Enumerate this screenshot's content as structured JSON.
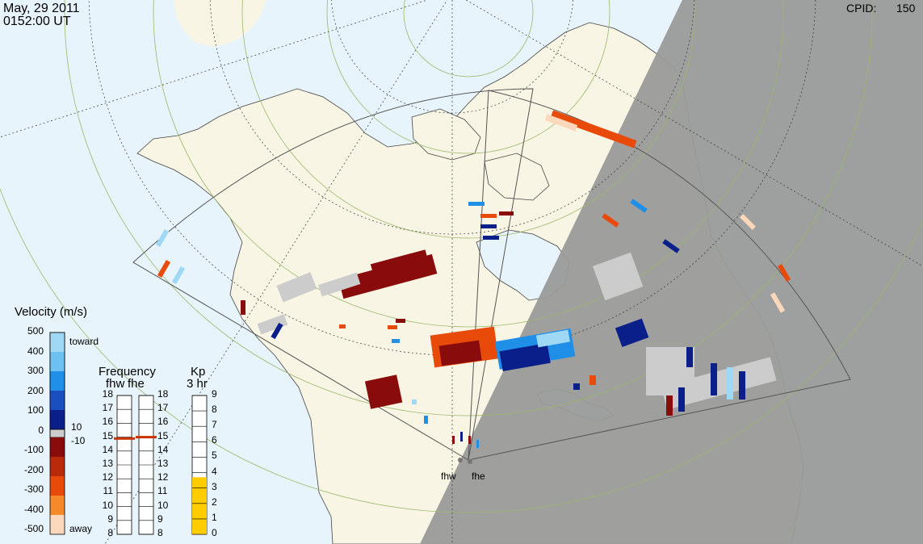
{
  "header": {
    "date": "May, 29 2011",
    "time": "0152:00 UT",
    "cpid_label": "CPID:",
    "cpid_value": "150"
  },
  "radars": [
    "fhw",
    "fhe"
  ],
  "velocity_scale": {
    "title": "Velocity (m/s)",
    "ticks": [
      "500",
      "400",
      "300",
      "200",
      "100",
      "0",
      "-100",
      "-200",
      "-300",
      "-400",
      "-500"
    ],
    "toward_label": "toward",
    "away_label": "away",
    "threshold_pos": "10",
    "threshold_neg": "-10",
    "colors": {
      "toward_max": "#9fd8f5",
      "toward_mid": "#1f8fe8",
      "toward_min": "#0a1f8a",
      "zero": "#cccccc",
      "away_min": "#8a0b0b",
      "away_mid": "#e84a0a",
      "away_max": "#fbd7bb"
    }
  },
  "frequency_panel": {
    "title": "Frequency",
    "subtitle_left": "fhw",
    "subtitle_right": "fhe",
    "ticks": [
      "8",
      "9",
      "10",
      "11",
      "12",
      "13",
      "14",
      "15",
      "16",
      "17",
      "18"
    ],
    "fhw_mhz": 14.9,
    "fhe_mhz": 15.0,
    "marker_color": "#cc3300"
  },
  "kp_panel": {
    "title": "Kp",
    "subtitle": "3 hr",
    "ticks": [
      "0",
      "1",
      "2",
      "3",
      "4",
      "5",
      "6",
      "7",
      "8",
      "9"
    ],
    "value": 3.7,
    "fill_color": "#ffcc00"
  },
  "map_colors": {
    "ocean": "#e8f4fb",
    "land": "#f8f5e4",
    "night": "#9a9a9a",
    "fov_outline": "#555555",
    "grid": "#9ab86a"
  }
}
